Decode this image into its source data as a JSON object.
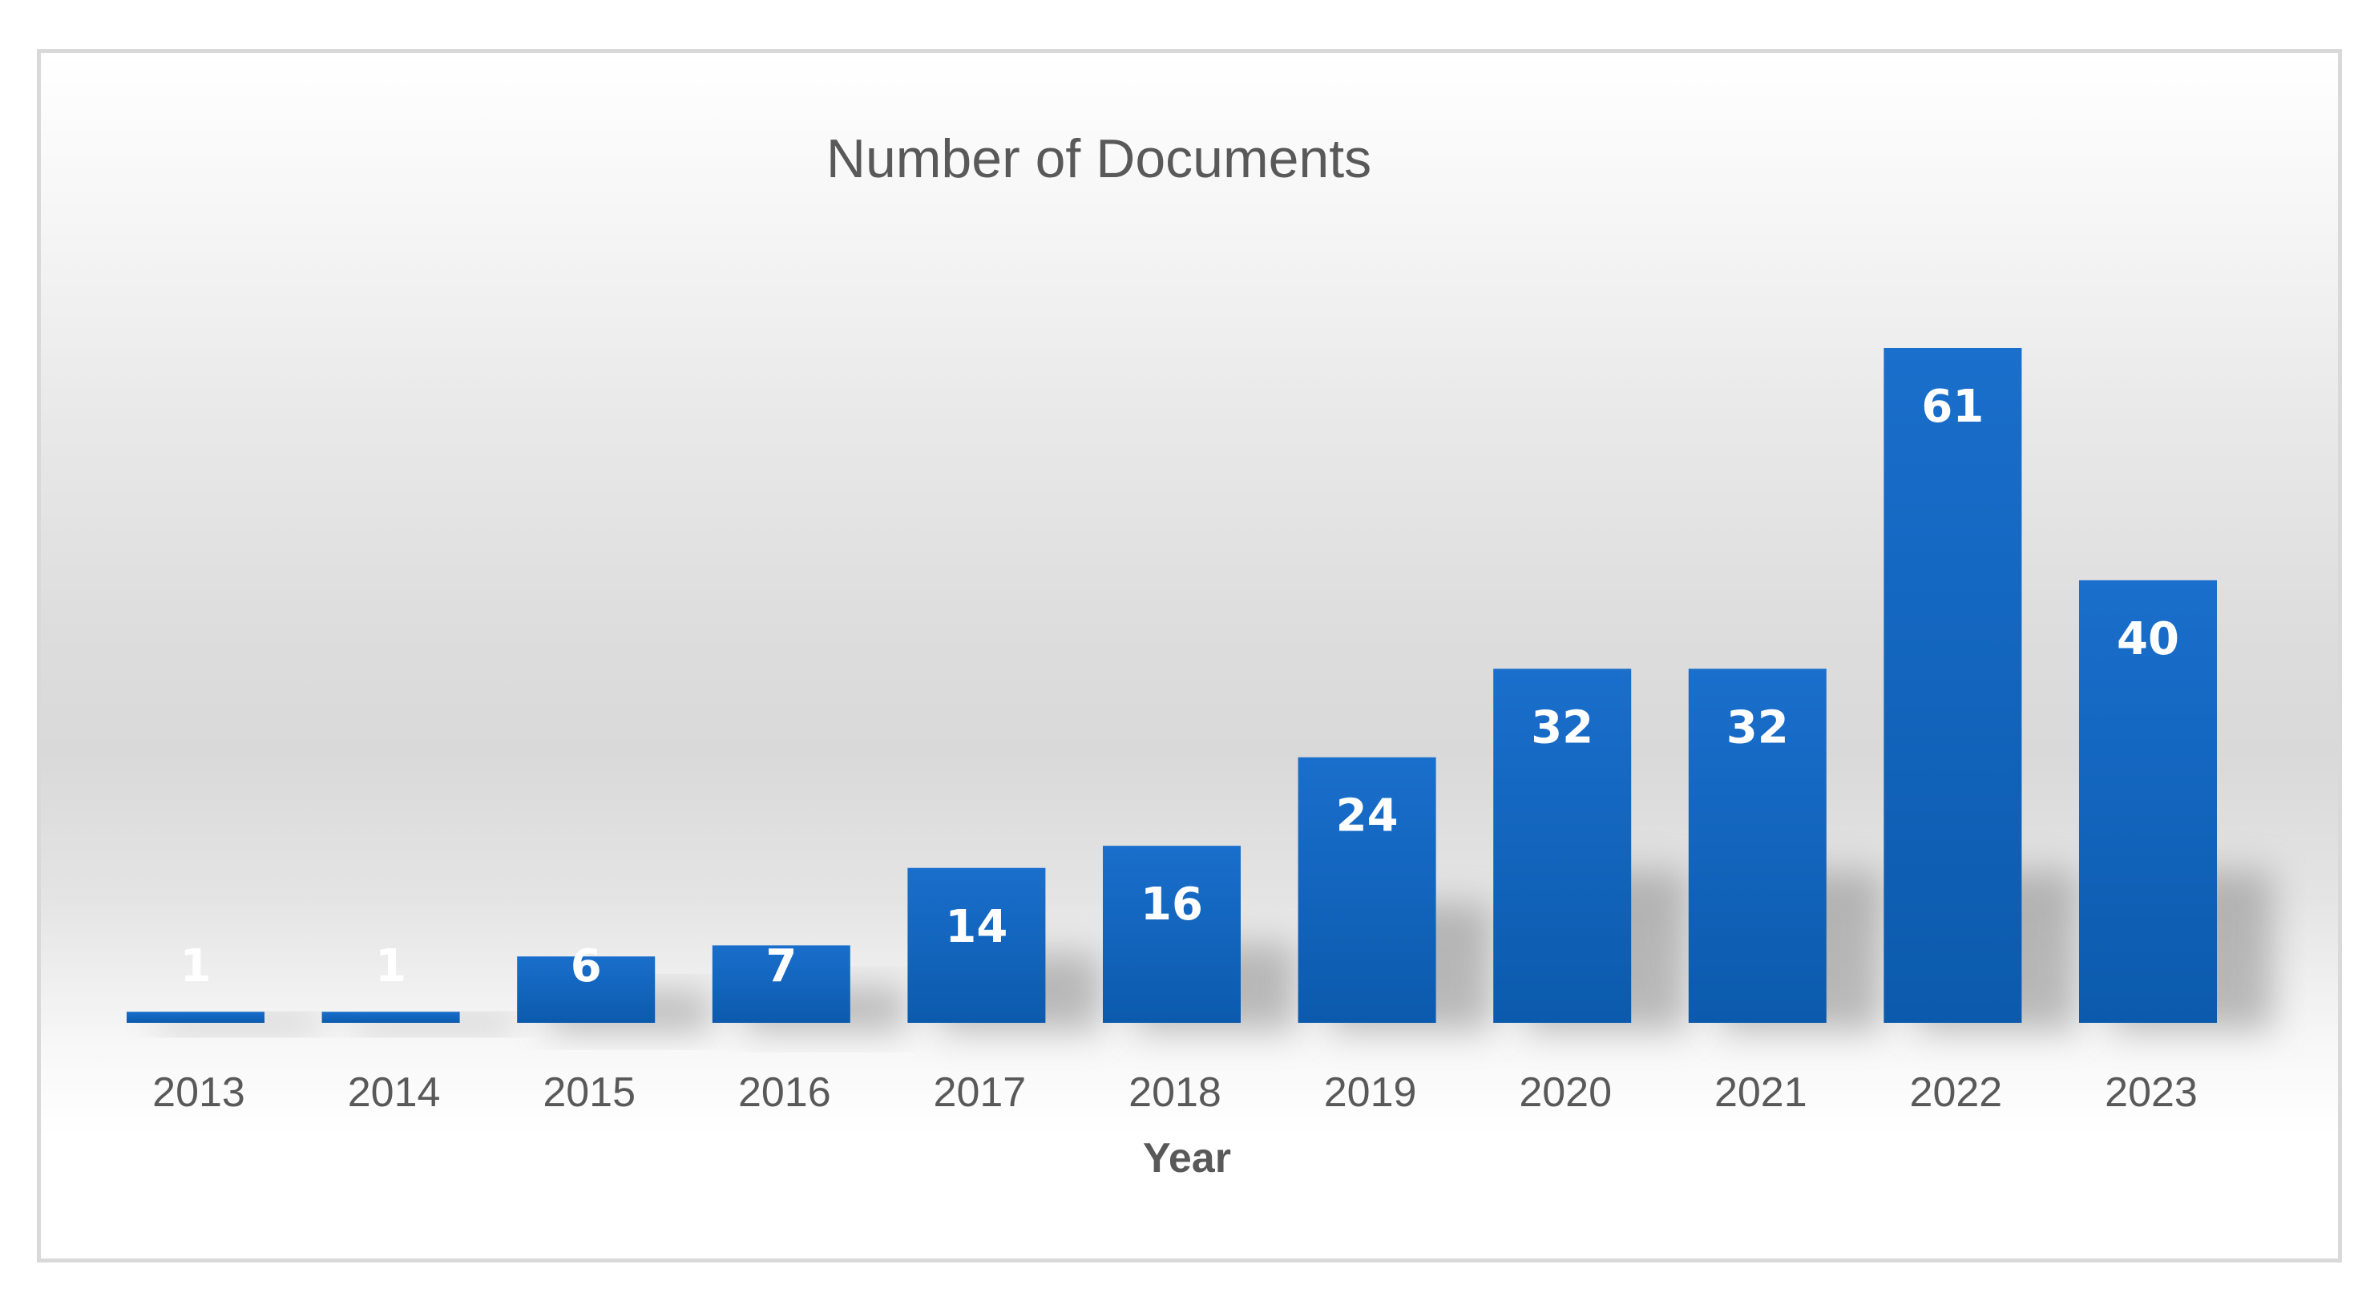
{
  "chart_data": {
    "type": "bar",
    "title": "Number of Documents",
    "xlabel": "Year",
    "ylabel": "",
    "categories": [
      "2013",
      "2014",
      "2015",
      "2016",
      "2017",
      "2018",
      "2019",
      "2020",
      "2021",
      "2022",
      "2023"
    ],
    "values": [
      1,
      1,
      6,
      7,
      14,
      16,
      24,
      32,
      32,
      61,
      40
    ],
    "ylim": [
      0,
      61
    ],
    "grid": false,
    "legend": "none",
    "data_labels": true,
    "bar_color": "#1565c0",
    "label_color": "#ffffff",
    "text_color": "#595959"
  }
}
